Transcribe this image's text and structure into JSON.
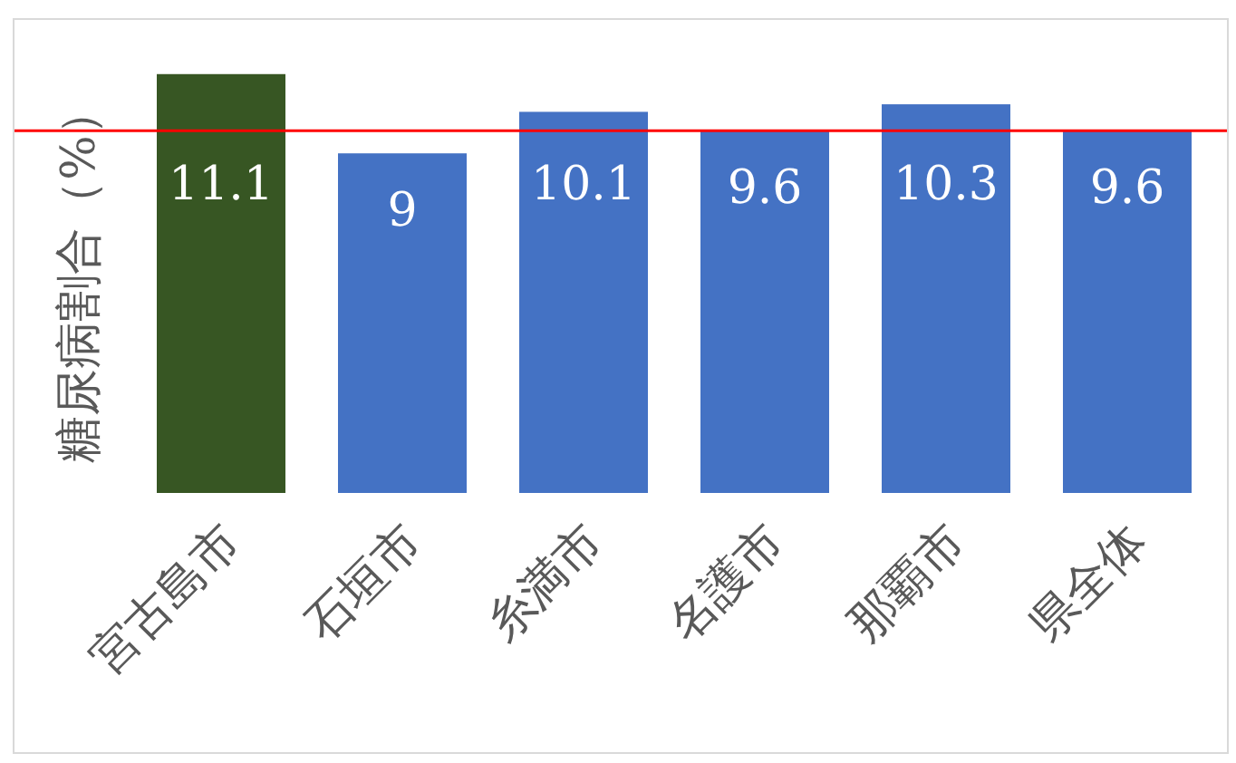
{
  "chart_data": {
    "type": "bar",
    "ylabel": "糖尿病割合（%）",
    "categories": [
      "宮古島市",
      "石垣市",
      "糸満市",
      "名護市",
      "那覇市",
      "県全体"
    ],
    "values": [
      11.1,
      9,
      10.1,
      9.6,
      10.3,
      9.6
    ],
    "colors": [
      "#375623",
      "#4472c4",
      "#4472c4",
      "#4472c4",
      "#4472c4",
      "#4472c4"
    ],
    "data_labels": true,
    "ref_lines": [
      {
        "axis": "y",
        "value": 9.6,
        "color": "#ff0000",
        "line_style": "solid"
      }
    ]
  }
}
